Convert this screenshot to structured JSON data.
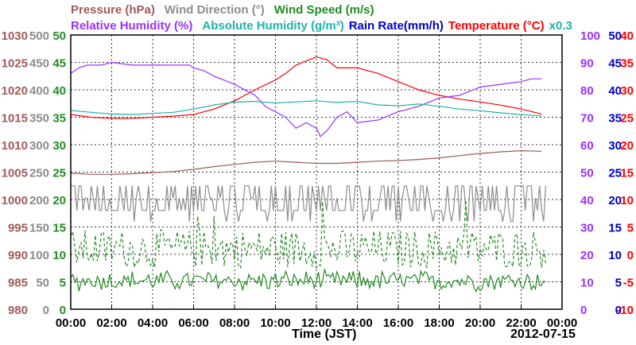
{
  "chart_data": {
    "type": "line",
    "date_label": "2012-07-15",
    "xlabel": "Time (JST)",
    "x_ticks": [
      "00:00",
      "02:00",
      "04:00",
      "06:00",
      "08:00",
      "10:00",
      "12:00",
      "14:00",
      "16:00",
      "18:00",
      "20:00",
      "22:00",
      "00:00"
    ],
    "x_range_hours": [
      0,
      24
    ],
    "grid": true,
    "legend": [
      {
        "key": "pressure",
        "row": 1,
        "text": "Pressure (hPa)",
        "color": "#a05a5a"
      },
      {
        "key": "wdir",
        "row": 1,
        "text": "Wind Direction (°)",
        "color": "#8c8c8c"
      },
      {
        "key": "wspd",
        "row": 1,
        "text": "Wind Speed (m/s)",
        "color": "#228b22"
      },
      {
        "key": "rh",
        "row": 2,
        "text": "Relative Humidity (%)",
        "color": "#9b30ff"
      },
      {
        "key": "ah",
        "row": 2,
        "text": "Absolute Humidity (g/m³)",
        "color": "#20b2aa"
      },
      {
        "key": "rain",
        "row": 2,
        "text": "Rain Rate(mm/h)",
        "color": "#0000cd"
      },
      {
        "key": "temp",
        "row": 2,
        "text": "Temperature (°C)",
        "color": "#ff0000"
      },
      {
        "key": "ahscale",
        "row": 2,
        "text": "x0.3",
        "color": "#20b2aa"
      }
    ],
    "axes": {
      "pressure": {
        "range": [
          980,
          1030
        ],
        "ticks": [
          "980",
          "985",
          "990",
          "995",
          "1000",
          "1005",
          "1010",
          "1015",
          "1020",
          "1025",
          "1030"
        ],
        "color": "#a05a5a"
      },
      "wdir": {
        "range": [
          0,
          500
        ],
        "ticks": [
          "0",
          "50",
          "100",
          "150",
          "200",
          "250",
          "300",
          "350",
          "400",
          "450",
          "500"
        ],
        "color": "#8c8c8c"
      },
      "wspd": {
        "range": [
          0,
          50
        ],
        "ticks": [
          "0",
          "5",
          "10",
          "15",
          "20",
          "25",
          "30",
          "35",
          "40",
          "45",
          "50"
        ],
        "color": "#228b22"
      },
      "rh": {
        "range": [
          0,
          100
        ],
        "ticks": [
          "0",
          "10",
          "20",
          "30",
          "40",
          "50",
          "60",
          "70",
          "80",
          "90",
          "100"
        ],
        "color": "#9b30ff"
      },
      "rain": {
        "range": [
          0,
          50
        ],
        "ticks": [
          "0",
          "5",
          "10",
          "15",
          "20",
          "25",
          "30",
          "35",
          "40",
          "45",
          "50"
        ],
        "color": "#0000cd"
      },
      "temp": {
        "range": [
          -10,
          40
        ],
        "ticks": [
          "-10",
          "-5",
          "0",
          "5",
          "10",
          "15",
          "20",
          "25",
          "30",
          "35",
          "40"
        ],
        "color": "#ff0000"
      }
    },
    "series": [
      {
        "name": "Pressure (hPa)",
        "key": "pressure",
        "color": "#a05a5a",
        "axis": "pressure",
        "style": "solid",
        "x": [
          0,
          1,
          2,
          3,
          4,
          5,
          6,
          7,
          8,
          9,
          10,
          11,
          12,
          13,
          14,
          15,
          16,
          17,
          18,
          19,
          20,
          21,
          22,
          23
        ],
        "y": [
          1004.8,
          1004.6,
          1004.6,
          1004.7,
          1004.9,
          1005.1,
          1005.5,
          1006.0,
          1006.4,
          1006.8,
          1007.0,
          1006.8,
          1006.6,
          1006.6,
          1006.8,
          1007.0,
          1007.1,
          1007.3,
          1007.6,
          1008.0,
          1008.4,
          1008.7,
          1008.9,
          1008.8
        ]
      },
      {
        "name": "Temperature (°C)",
        "key": "temp",
        "color": "#ff0000",
        "axis": "temp",
        "style": "solid",
        "x": [
          0,
          1,
          2,
          3,
          4,
          5,
          6,
          7,
          8,
          9,
          10,
          10.5,
          11,
          12,
          12.5,
          13,
          14,
          15,
          16,
          17,
          18,
          19,
          20,
          21,
          22,
          23
        ],
        "y": [
          25.5,
          25.0,
          24.8,
          24.8,
          25.0,
          25.2,
          25.5,
          26.5,
          28.0,
          30.0,
          31.8,
          33.0,
          34.5,
          36.0,
          35.5,
          34.0,
          34.0,
          33.0,
          31.5,
          30.0,
          29.0,
          28.3,
          27.8,
          27.2,
          26.5,
          25.6
        ]
      },
      {
        "name": "Relative Humidity (%)",
        "key": "rh",
        "color": "#9b30ff",
        "axis": "rh",
        "style": "solid",
        "x": [
          0,
          0.4,
          0.8,
          1.5,
          2,
          3,
          4,
          5,
          5.8,
          6,
          6.5,
          7,
          8,
          9,
          9.5,
          10,
          10.5,
          11,
          11.5,
          12,
          12.2,
          12.5,
          13,
          13.5,
          14,
          15,
          16,
          17,
          18,
          19,
          20,
          21,
          22,
          22.5,
          23
        ],
        "y": [
          86,
          88,
          89,
          89,
          90,
          89,
          89,
          89,
          89,
          88,
          87,
          85,
          82,
          78,
          74,
          72,
          70,
          66,
          68,
          66,
          63,
          65,
          70,
          72,
          68,
          69,
          72,
          74,
          77,
          78,
          81,
          82,
          83,
          84,
          84
        ]
      },
      {
        "name": "Absolute Humidity (g/m³)",
        "key": "ah",
        "color": "#20b2aa",
        "axis": "rh",
        "style": "solid",
        "x": [
          0,
          1,
          2,
          3,
          4,
          5,
          6,
          7,
          8,
          9,
          10,
          11,
          12,
          13,
          14,
          15,
          16,
          17,
          18,
          19,
          20,
          21,
          22,
          23
        ],
        "y": [
          72.5,
          71.8,
          71.2,
          71.0,
          71.4,
          71.8,
          73.0,
          74.5,
          75.5,
          75.8,
          75.2,
          75.6,
          76.0,
          75.4,
          75.8,
          74.5,
          74.2,
          74.8,
          74.0,
          73.0,
          72.4,
          71.6,
          71.0,
          70.5
        ]
      },
      {
        "name": "Wind Direction (°)",
        "key": "wdir",
        "color": "#8c8c8c",
        "axis": "wdir",
        "style": "solid",
        "kind": "wdir_noise",
        "base": 180,
        "amplitude": 45
      },
      {
        "name": "Wind Speed (m/s)",
        "key": "wspd",
        "color": "#228b22",
        "axis": "wspd",
        "style": "solid",
        "kind": "wspd_noise",
        "base": 5.2,
        "amplitude": 2
      },
      {
        "name": "Wind Speed gust (m/s)",
        "key": "wgust",
        "color": "#228b22",
        "axis": "wspd",
        "style": "dashed",
        "kind": "gust_noise",
        "base": 11,
        "amplitude": 5
      }
    ]
  }
}
